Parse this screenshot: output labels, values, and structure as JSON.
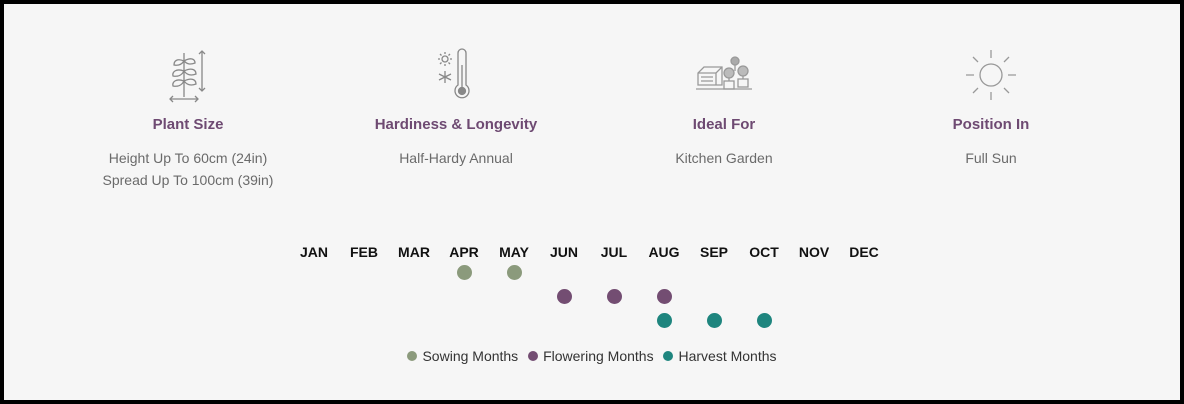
{
  "attributes": [
    {
      "icon": "plant-size-icon",
      "title": "Plant Size",
      "lines": [
        "Height Up To 60cm (24in)",
        "Spread Up To 100cm (39in)"
      ]
    },
    {
      "icon": "thermometer-icon",
      "title": "Hardiness & Longevity",
      "lines": [
        "Half-Hardy Annual"
      ]
    },
    {
      "icon": "garden-icon",
      "title": "Ideal For",
      "lines": [
        "Kitchen Garden"
      ]
    },
    {
      "icon": "sun-icon",
      "title": "Position In",
      "lines": [
        "Full Sun"
      ]
    }
  ],
  "calendar": {
    "months": [
      "JAN",
      "FEB",
      "MAR",
      "APR",
      "MAY",
      "JUN",
      "JUL",
      "AUG",
      "SEP",
      "OCT",
      "NOV",
      "DEC"
    ],
    "sowing": [
      "APR",
      "MAY"
    ],
    "flowering": [
      "JUN",
      "JUL",
      "AUG"
    ],
    "harvest": [
      "AUG",
      "SEP",
      "OCT"
    ]
  },
  "legend": {
    "sowing": "Sowing Months",
    "flowering": "Flowering Months",
    "harvest": "Harvest Months"
  },
  "colors": {
    "sowing": "#8b9a7c",
    "flowering": "#734d72",
    "harvest": "#1e857e",
    "title": "#6e4a72"
  }
}
